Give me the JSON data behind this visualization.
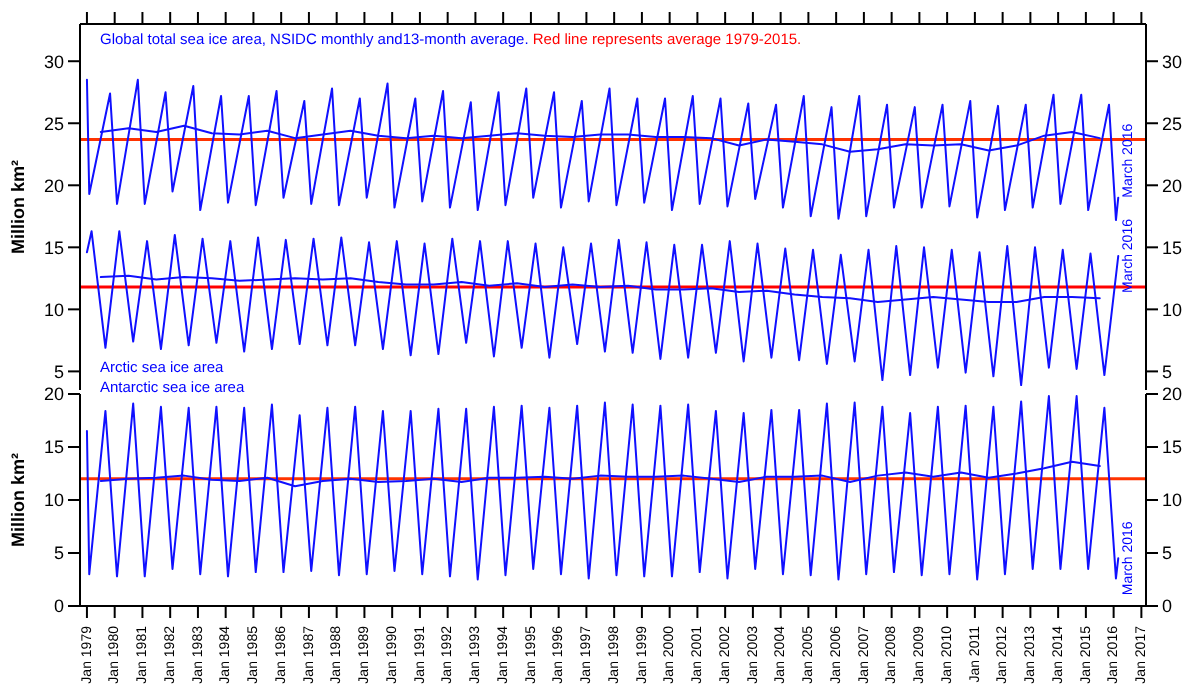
{
  "chart_data": [
    {
      "type": "line",
      "title": "Global total sea ice area, NSIDC monthly and13-month average.",
      "subtitle": "Red line represents average 1979-2015.",
      "ylabel": "Million km²",
      "tick_labels": "y",
      "xlim": [
        "1978-10",
        "2017-03"
      ],
      "xticks": [
        {
          "value": "1979-01",
          "label": null
        },
        {
          "value": "1980-01",
          "label": null
        },
        {
          "value": "1981-01",
          "label": null
        },
        {
          "value": "1982-01",
          "label": null
        },
        {
          "value": "1983-01",
          "label": null
        },
        {
          "value": "1984-01",
          "label": null
        },
        {
          "value": "1985-01",
          "label": null
        },
        {
          "value": "1986-01",
          "label": null
        },
        {
          "value": "1987-01",
          "label": null
        },
        {
          "value": "1988-01",
          "label": null
        },
        {
          "value": "1989-01",
          "label": null
        },
        {
          "value": "1990-01",
          "label": null
        },
        {
          "value": "1991-01",
          "label": null
        },
        {
          "value": "1992-01",
          "label": null
        },
        {
          "value": "1993-01",
          "label": null
        },
        {
          "value": "1994-01",
          "label": null
        },
        {
          "value": "1995-01",
          "label": null
        },
        {
          "value": "1996-01",
          "label": null
        },
        {
          "value": "1997-01",
          "label": null
        },
        {
          "value": "1998-01",
          "label": null
        },
        {
          "value": "1999-01",
          "label": null
        },
        {
          "value": "2000-01",
          "label": null
        },
        {
          "value": "2001-01",
          "label": null
        },
        {
          "value": "2002-01",
          "label": null
        },
        {
          "value": "2003-01",
          "label": null
        },
        {
          "value": "2004-01",
          "label": null
        },
        {
          "value": "2005-01",
          "label": null
        },
        {
          "value": "2006-01",
          "label": null
        },
        {
          "value": "2007-01",
          "label": null
        },
        {
          "value": "2008-01",
          "label": null
        },
        {
          "value": "2009-01",
          "label": null
        },
        {
          "value": "2010-01",
          "label": null
        },
        {
          "value": "2011-01",
          "label": null
        },
        {
          "value": "2012-01",
          "label": null
        },
        {
          "value": "2013-01",
          "label": null
        },
        {
          "value": "2014-01",
          "label": null
        },
        {
          "value": "2015-01",
          "label": null
        },
        {
          "value": "2016-01",
          "label": null
        },
        {
          "value": "2017-01",
          "label": null
        }
      ],
      "ylim": [
        3.5,
        33
      ],
      "yticks": [
        5,
        10,
        15,
        20,
        25,
        30
      ],
      "y2lim": [
        3.5,
        33
      ],
      "y2ticks": [
        5,
        10,
        15,
        20,
        25,
        30
      ],
      "series": [
        {
          "color": "#1010ff",
          "x": [
            "1979-01",
            "1979-02",
            "1979-11",
            "1980-02",
            "1980-11",
            "1981-02",
            "1981-11",
            "1982-02",
            "1982-11",
            "1983-02",
            "1983-11",
            "1984-02",
            "1984-11",
            "1985-02",
            "1985-11",
            "1986-02",
            "1986-11",
            "1987-02",
            "1987-11",
            "1988-02",
            "1988-11",
            "1989-02",
            "1989-11",
            "1990-02",
            "1990-11",
            "1991-02",
            "1991-11",
            "1992-02",
            "1992-11",
            "1993-02",
            "1993-11",
            "1994-02",
            "1994-11",
            "1995-02",
            "1995-11",
            "1996-02",
            "1996-11",
            "1997-02",
            "1997-11",
            "1998-02",
            "1998-11",
            "1999-02",
            "1999-11",
            "2000-02",
            "2000-11",
            "2001-02",
            "2001-11",
            "2002-02",
            "2002-11",
            "2003-02",
            "2003-11",
            "2004-02",
            "2004-11",
            "2005-02",
            "2005-11",
            "2006-02",
            "2006-11",
            "2007-02",
            "2007-11",
            "2008-02",
            "2008-11",
            "2009-02",
            "2009-11",
            "2010-02",
            "2010-11",
            "2011-02",
            "2011-11",
            "2012-02",
            "2012-11",
            "2013-02",
            "2013-11",
            "2014-02",
            "2014-11",
            "2015-02",
            "2015-11",
            "2016-02",
            "2016-03"
          ],
          "values": [
            28.5,
            19.3,
            27.4,
            18.5,
            28.5,
            18.5,
            27.5,
            19.5,
            28.0,
            18.0,
            27.2,
            18.6,
            27.2,
            18.4,
            27.6,
            19.0,
            26.8,
            18.5,
            27.8,
            18.4,
            27.0,
            19.0,
            28.2,
            18.2,
            27.0,
            18.7,
            27.6,
            18.2,
            26.7,
            18.0,
            27.5,
            18.4,
            27.8,
            19.0,
            27.5,
            18.2,
            26.8,
            18.7,
            27.8,
            18.4,
            27.0,
            18.6,
            27.0,
            18.0,
            27.2,
            18.5,
            27.0,
            18.3,
            26.6,
            18.9,
            26.5,
            18.2,
            27.2,
            17.5,
            26.3,
            17.3,
            27.2,
            17.5,
            26.5,
            18.2,
            26.3,
            18.2,
            26.5,
            18.3,
            26.8,
            17.4,
            26.4,
            18.0,
            26.5,
            18.2,
            27.3,
            18.5,
            27.3,
            18.0,
            26.5,
            17.2,
            19.0
          ]
        },
        {
          "color": "#1010ff",
          "x": [
            "1979-07",
            "1980-07",
            "1981-07",
            "1982-07",
            "1983-07",
            "1984-07",
            "1985-07",
            "1986-07",
            "1987-07",
            "1988-07",
            "1989-07",
            "1990-07",
            "1991-07",
            "1992-07",
            "1993-07",
            "1994-07",
            "1995-07",
            "1996-07",
            "1997-07",
            "1998-07",
            "1999-07",
            "2000-07",
            "2001-07",
            "2002-07",
            "2003-07",
            "2004-07",
            "2005-07",
            "2006-07",
            "2007-07",
            "2008-07",
            "2009-07",
            "2010-07",
            "2011-07",
            "2012-07",
            "2013-07",
            "2014-07",
            "2015-07"
          ],
          "values": [
            24.3,
            24.6,
            24.3,
            24.8,
            24.2,
            24.1,
            24.4,
            23.8,
            24.1,
            24.4,
            24.0,
            23.8,
            24.0,
            23.8,
            24.0,
            24.2,
            24.0,
            23.9,
            24.1,
            24.1,
            23.9,
            23.9,
            23.8,
            23.2,
            23.7,
            23.5,
            23.3,
            22.7,
            22.9,
            23.3,
            23.2,
            23.3,
            22.8,
            23.2,
            24.0,
            24.3,
            23.8
          ]
        },
        {
          "color": "#1010ff",
          "x": [
            "1979-01",
            "1979-03",
            "1979-09",
            "1980-03",
            "1980-09",
            "1981-03",
            "1981-09",
            "1982-03",
            "1982-09",
            "1983-03",
            "1983-09",
            "1984-03",
            "1984-09",
            "1985-03",
            "1985-09",
            "1986-03",
            "1986-09",
            "1987-03",
            "1987-09",
            "1988-03",
            "1988-09",
            "1989-03",
            "1989-09",
            "1990-03",
            "1990-09",
            "1991-03",
            "1991-09",
            "1992-03",
            "1992-09",
            "1993-03",
            "1993-09",
            "1994-03",
            "1994-09",
            "1995-03",
            "1995-09",
            "1996-03",
            "1996-09",
            "1997-03",
            "1997-09",
            "1998-03",
            "1998-09",
            "1999-03",
            "1999-09",
            "2000-03",
            "2000-09",
            "2001-03",
            "2001-09",
            "2002-03",
            "2002-09",
            "2003-03",
            "2003-09",
            "2004-03",
            "2004-09",
            "2005-03",
            "2005-09",
            "2006-03",
            "2006-09",
            "2007-03",
            "2007-09",
            "2008-03",
            "2008-09",
            "2009-03",
            "2009-09",
            "2010-03",
            "2010-09",
            "2011-03",
            "2011-09",
            "2012-03",
            "2012-09",
            "2013-03",
            "2013-09",
            "2014-03",
            "2014-09",
            "2015-03",
            "2015-09",
            "2016-03"
          ],
          "values": [
            14.6,
            16.3,
            6.9,
            16.3,
            7.4,
            15.5,
            6.8,
            16.0,
            7.1,
            15.7,
            7.3,
            15.5,
            6.6,
            15.8,
            6.8,
            15.6,
            7.2,
            15.7,
            7.1,
            15.8,
            7.1,
            15.4,
            6.8,
            15.5,
            6.3,
            15.3,
            6.4,
            15.7,
            7.3,
            15.5,
            6.2,
            15.5,
            6.9,
            15.3,
            6.1,
            15.0,
            7.2,
            15.3,
            6.6,
            15.6,
            6.5,
            15.4,
            6.0,
            15.2,
            6.1,
            15.2,
            6.5,
            15.5,
            5.8,
            15.3,
            6.1,
            14.9,
            5.9,
            14.8,
            5.6,
            14.4,
            5.8,
            14.8,
            4.3,
            15.1,
            4.7,
            15.0,
            5.3,
            14.8,
            4.9,
            14.6,
            4.6,
            15.1,
            3.9,
            15.0,
            5.3,
            14.8,
            5.2,
            14.5,
            4.7,
            14.3
          ]
        },
        {
          "color": "#1010ff",
          "x": [
            "1979-07",
            "1980-07",
            "1981-07",
            "1982-07",
            "1983-07",
            "1984-07",
            "1985-07",
            "1986-07",
            "1987-07",
            "1988-07",
            "1989-07",
            "1990-07",
            "1991-07",
            "1992-07",
            "1993-07",
            "1994-07",
            "1995-07",
            "1996-07",
            "1997-07",
            "1998-07",
            "1999-07",
            "2000-07",
            "2001-07",
            "2002-07",
            "2003-07",
            "2004-07",
            "2005-07",
            "2006-07",
            "2007-07",
            "2008-07",
            "2009-07",
            "2010-07",
            "2011-07",
            "2012-07",
            "2013-07",
            "2014-07",
            "2015-07"
          ],
          "values": [
            12.6,
            12.7,
            12.4,
            12.6,
            12.5,
            12.3,
            12.4,
            12.5,
            12.4,
            12.5,
            12.2,
            12.0,
            12.0,
            12.2,
            11.9,
            12.1,
            11.8,
            12.0,
            11.8,
            11.9,
            11.6,
            11.6,
            11.7,
            11.4,
            11.5,
            11.2,
            11.0,
            10.9,
            10.6,
            10.8,
            11.0,
            10.8,
            10.6,
            10.6,
            11.0,
            11.0,
            10.9
          ]
        }
      ],
      "ref_lines": [
        {
          "axis": "y",
          "value": 23.7,
          "color": "#ff3300"
        },
        {
          "axis": "y",
          "value": 11.8,
          "color": "#ff0000"
        }
      ],
      "annotations": [
        "Arctic sea ice area",
        {
          "text": "March 2016",
          "x": "2016-03",
          "y": 19.0
        },
        {
          "text": "March 2016",
          "x": "2016-03",
          "y": 14.3
        }
      ]
    },
    {
      "type": "line",
      "ylabel": "Million km²",
      "xlim": [
        "1978-10",
        "2017-03"
      ],
      "xticks": [
        {
          "value": "1979-01",
          "label": "Jan 1979"
        },
        {
          "value": "1980-01",
          "label": "Jan 1980"
        },
        {
          "value": "1981-01",
          "label": "Jan 1981"
        },
        {
          "value": "1982-01",
          "label": "Jan 1982"
        },
        {
          "value": "1983-01",
          "label": "Jan 1983"
        },
        {
          "value": "1984-01",
          "label": "Jan 1984"
        },
        {
          "value": "1985-01",
          "label": "Jan 1985"
        },
        {
          "value": "1986-01",
          "label": "Jan 1986"
        },
        {
          "value": "1987-01",
          "label": "Jan 1987"
        },
        {
          "value": "1988-01",
          "label": "Jan 1988"
        },
        {
          "value": "1989-01",
          "label": "Jan 1989"
        },
        {
          "value": "1990-01",
          "label": "Jan 1990"
        },
        {
          "value": "1991-01",
          "label": "Jan 1991"
        },
        {
          "value": "1992-01",
          "label": "Jan 1992"
        },
        {
          "value": "1993-01",
          "label": "Jan 1993"
        },
        {
          "value": "1994-01",
          "label": "Jan 1994"
        },
        {
          "value": "1995-01",
          "label": "Jan 1995"
        },
        {
          "value": "1996-01",
          "label": "Jan 1996"
        },
        {
          "value": "1997-01",
          "label": "Jan 1997"
        },
        {
          "value": "1998-01",
          "label": "Jan 1998"
        },
        {
          "value": "1999-01",
          "label": "Jan 1999"
        },
        {
          "value": "2000-01",
          "label": "Jan 2000"
        },
        {
          "value": "2001-01",
          "label": "Jan 2001"
        },
        {
          "value": "2002-01",
          "label": "Jan 2002"
        },
        {
          "value": "2003-01",
          "label": "Jan 2003"
        },
        {
          "value": "2004-01",
          "label": "Jan 2004"
        },
        {
          "value": "2005-01",
          "label": "Jan 2005"
        },
        {
          "value": "2006-01",
          "label": "Jan 2006"
        },
        {
          "value": "2007-01",
          "label": "Jan 2007"
        },
        {
          "value": "2008-01",
          "label": "Jan 2008"
        },
        {
          "value": "2009-01",
          "label": "Jan 2009"
        },
        {
          "value": "2010-01",
          "label": "Jan 2010"
        },
        {
          "value": "2011-01",
          "label": "Jan 2011"
        },
        {
          "value": "2012-01",
          "label": "Jan 2012"
        },
        {
          "value": "2013-01",
          "label": "Jan 2013"
        },
        {
          "value": "2014-01",
          "label": "Jan 2014"
        },
        {
          "value": "2015-01",
          "label": "Jan 2015"
        },
        {
          "value": "2016-01",
          "label": "Jan 2016"
        },
        {
          "value": "2017-01",
          "label": "Jan 2017"
        }
      ],
      "ylim": [
        0,
        20
      ],
      "yticks": [
        0,
        5,
        10,
        15,
        20
      ],
      "y2lim": [
        0,
        20
      ],
      "y2ticks": [
        0,
        5,
        10,
        15,
        20
      ],
      "series": [
        {
          "color": "#1010ff",
          "x": [
            "1979-01",
            "1979-02",
            "1979-09",
            "1980-02",
            "1980-09",
            "1981-02",
            "1981-09",
            "1982-02",
            "1982-09",
            "1983-02",
            "1983-09",
            "1984-02",
            "1984-09",
            "1985-02",
            "1985-09",
            "1986-02",
            "1986-09",
            "1987-02",
            "1987-09",
            "1988-02",
            "1988-09",
            "1989-02",
            "1989-09",
            "1990-02",
            "1990-09",
            "1991-02",
            "1991-09",
            "1992-02",
            "1992-09",
            "1993-02",
            "1993-09",
            "1994-02",
            "1994-09",
            "1995-02",
            "1995-09",
            "1996-02",
            "1996-09",
            "1997-02",
            "1997-09",
            "1998-02",
            "1998-09",
            "1999-02",
            "1999-09",
            "2000-02",
            "2000-09",
            "2001-02",
            "2001-09",
            "2002-02",
            "2002-09",
            "2003-02",
            "2003-09",
            "2004-02",
            "2004-09",
            "2005-02",
            "2005-09",
            "2006-02",
            "2006-09",
            "2007-02",
            "2007-09",
            "2008-02",
            "2008-09",
            "2009-02",
            "2009-09",
            "2010-02",
            "2010-09",
            "2011-02",
            "2011-09",
            "2012-02",
            "2012-09",
            "2013-02",
            "2013-09",
            "2014-02",
            "2014-09",
            "2015-02",
            "2015-09",
            "2016-02",
            "2016-03"
          ],
          "values": [
            16.5,
            3.0,
            18.4,
            2.8,
            19.1,
            2.8,
            18.8,
            3.5,
            18.7,
            3.0,
            18.8,
            2.8,
            18.7,
            3.2,
            19.0,
            3.2,
            18.0,
            3.3,
            18.7,
            2.9,
            18.8,
            3.0,
            18.4,
            3.3,
            18.4,
            3.0,
            18.6,
            2.8,
            18.6,
            2.5,
            18.8,
            2.9,
            18.9,
            3.5,
            18.7,
            3.0,
            18.9,
            2.6,
            19.2,
            2.9,
            19.0,
            2.8,
            18.9,
            2.8,
            19.0,
            3.2,
            18.4,
            2.6,
            18.2,
            3.5,
            18.5,
            3.0,
            18.5,
            2.9,
            19.1,
            2.5,
            19.2,
            3.0,
            18.8,
            3.2,
            18.2,
            2.9,
            18.8,
            3.0,
            18.9,
            2.5,
            18.8,
            3.0,
            19.3,
            3.5,
            19.8,
            3.5,
            19.8,
            3.5,
            18.7,
            2.6,
            4.5
          ]
        },
        {
          "color": "#1010ff",
          "x": [
            "1979-07",
            "1980-07",
            "1981-07",
            "1982-07",
            "1983-07",
            "1984-07",
            "1985-07",
            "1986-07",
            "1987-07",
            "1988-07",
            "1989-07",
            "1990-07",
            "1991-07",
            "1992-07",
            "1993-07",
            "1994-07",
            "1995-07",
            "1996-07",
            "1997-07",
            "1998-07",
            "1999-07",
            "2000-07",
            "2001-07",
            "2002-07",
            "2003-07",
            "2004-07",
            "2005-07",
            "2006-07",
            "2007-07",
            "2008-07",
            "2009-07",
            "2010-07",
            "2011-07",
            "2012-07",
            "2013-07",
            "2014-07",
            "2015-07"
          ],
          "values": [
            11.8,
            12.0,
            12.1,
            12.3,
            11.9,
            11.8,
            12.1,
            11.3,
            11.8,
            12.0,
            11.7,
            11.8,
            12.0,
            11.7,
            12.1,
            12.1,
            12.2,
            12.0,
            12.3,
            12.2,
            12.2,
            12.3,
            12.0,
            11.7,
            12.2,
            12.2,
            12.3,
            11.7,
            12.3,
            12.6,
            12.2,
            12.6,
            12.1,
            12.5,
            13.0,
            13.6,
            13.2
          ]
        }
      ],
      "ref_lines": [
        {
          "axis": "y",
          "value": 12.0,
          "color": "#ff3300"
        }
      ],
      "annotations": [
        "Antarctic sea ice area",
        {
          "text": "March 2016",
          "x": "2016-03",
          "y": 4.5
        }
      ]
    }
  ]
}
